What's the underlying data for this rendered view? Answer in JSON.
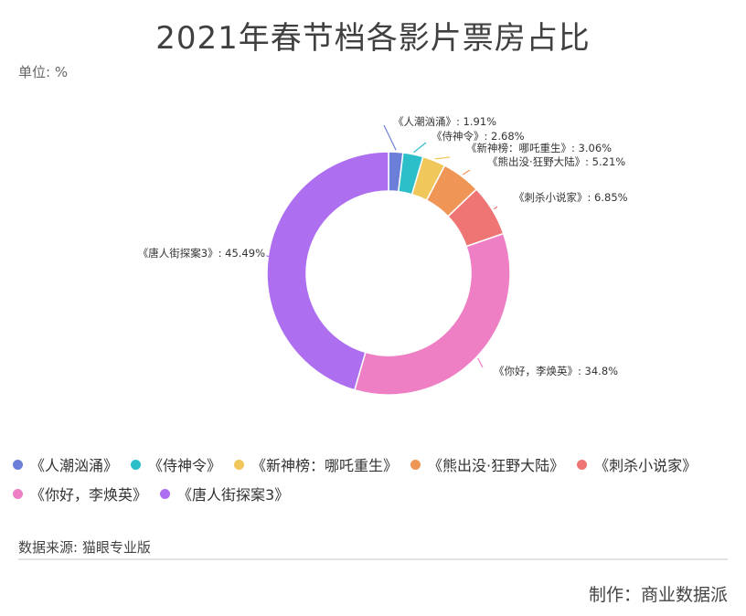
{
  "title": "2021年春节档各影片票房占比",
  "unit_label": "单位: %",
  "source_label": "数据来源: 猫眼专业版",
  "credit_label": "制作：商业数据派",
  "chart_data": {
    "type": "pie",
    "variant": "donut",
    "title": "2021年春节档各影片票房占比",
    "unit": "%",
    "legend_position": "bottom-left",
    "slices": [
      {
        "name": "《人潮汹涌》",
        "value": 1.91,
        "color": "#6c7fd8",
        "label": "《人潮汹涌》: 1.91%"
      },
      {
        "name": "《侍神令》",
        "value": 2.68,
        "color": "#2dbfc9",
        "label": "《侍神令》: 2.68%"
      },
      {
        "name": "《新神榜：哪吒重生》",
        "value": 3.06,
        "color": "#f0c75a",
        "label": "《新神榜：哪吒重生》: 3.06%"
      },
      {
        "name": "《熊出没·狂野大陆》",
        "value": 5.21,
        "color": "#ef9656",
        "label": "《熊出没·狂野大陆》: 5.21%"
      },
      {
        "name": "《刺杀小说家》",
        "value": 6.85,
        "color": "#ef7474",
        "label": "《刺杀小说家》: 6.85%"
      },
      {
        "name": "《你好，李焕英》",
        "value": 34.8,
        "color": "#ee7fc4",
        "label": "《你好，李焕英》: 34.8%"
      },
      {
        "name": "《唐人街探案3》",
        "value": 45.49,
        "color": "#ad6ff0",
        "label": "《唐人街探案3》: 45.49%"
      }
    ]
  }
}
